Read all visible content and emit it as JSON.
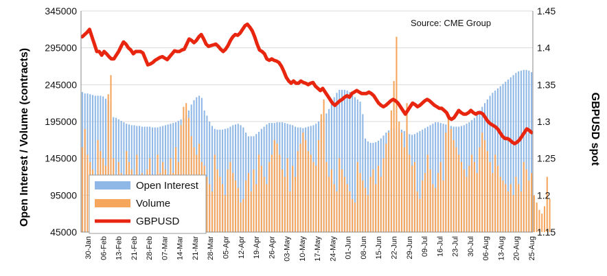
{
  "chart_data": {
    "type": "bar",
    "source_note": "Source: CME Group",
    "ylabel_left": "Open Interest / Volume (contracts)",
    "ylabel_right": "GBPUSD spot",
    "ylim_left": [
      45000,
      345000
    ],
    "ylim_right": [
      1.15,
      1.45
    ],
    "yticks_left": [
      "45000",
      "95000",
      "145000",
      "195000",
      "245000",
      "295000",
      "345000"
    ],
    "yticks_right": [
      "1.15",
      "1.2",
      "1.25",
      "1.3",
      "1.35",
      "1.4",
      "1.45"
    ],
    "xticks": [
      "30-Jan",
      "06-Feb",
      "13-Feb",
      "21-Feb",
      "28-Feb",
      "07-Mar",
      "14-Mar",
      "21-Mar",
      "28-Mar",
      "05-Apr",
      "12-Apr",
      "19-Apr",
      "26-Apr",
      "03-May",
      "10-May",
      "17-May",
      "24-May",
      "01-Jun",
      "08-Jun",
      "15-Jun",
      "22-Jun",
      "29-Jun",
      "09-Jul",
      "16-Jul",
      "23-Jul",
      "30-Jul",
      "06-Aug",
      "13-Aug",
      "20-Aug",
      "25-Aug"
    ],
    "legend": [
      {
        "label": "Open Interest",
        "color": "#8fb8e6"
      },
      {
        "label": "Volume",
        "color": "#f5a55c"
      },
      {
        "label": "GBPUSD",
        "color": "#e8260f"
      }
    ],
    "series": [
      {
        "name": "Open Interest",
        "type": "bar",
        "color": "#8fb8e6",
        "values": [
          235000,
          233000,
          233000,
          232000,
          231000,
          230000,
          230000,
          230000,
          229000,
          226000,
          223000,
          221000,
          201000,
          200000,
          198000,
          196000,
          194000,
          192000,
          191000,
          190000,
          190000,
          189000,
          189000,
          188000,
          188000,
          188000,
          188000,
          187000,
          187000,
          187000,
          188000,
          189000,
          190000,
          191000,
          192000,
          193000,
          194000,
          196000,
          198000,
          200000,
          204000,
          210000,
          218000,
          224000,
          228000,
          230000,
          227000,
          210000,
          203000,
          195000,
          189000,
          185000,
          184000,
          184000,
          184000,
          185000,
          186000,
          188000,
          190000,
          191000,
          192000,
          190000,
          187000,
          180000,
          175000,
          175000,
          175000,
          178000,
          181000,
          185000,
          188000,
          191000,
          193000,
          193000,
          193000,
          194000,
          194000,
          194000,
          193000,
          192000,
          191000,
          190000,
          188000,
          187000,
          187000,
          186000,
          187000,
          188000,
          189000,
          190000,
          192000,
          195000,
          198000,
          201000,
          206000,
          212000,
          220000,
          228000,
          234000,
          238000,
          238000,
          238000,
          237000,
          235000,
          232000,
          228000,
          225000,
          222000,
          205000,
          172000,
          168000,
          166000,
          166000,
          167000,
          169000,
          172000,
          176000,
          180000,
          183000,
          185000,
          186000,
          186000,
          185000,
          184000,
          182000,
          180000,
          178000,
          177000,
          178000,
          180000,
          182000,
          184000,
          186000,
          188000,
          190000,
          192000,
          194000,
          194000,
          193000,
          192000,
          191000,
          190000,
          189000,
          188000,
          188000,
          188000,
          189000,
          190000,
          192000,
          194000,
          197000,
          200000,
          205000,
          210000,
          215000,
          220000,
          225000,
          230000,
          234000,
          237000,
          240000,
          243000,
          246000,
          249000,
          252000,
          255000,
          258000,
          261000,
          263000,
          264000,
          265000,
          265000,
          264000,
          262000
        ]
      },
      {
        "name": "Volume",
        "type": "bar",
        "color": "#f5a55c",
        "values": [
          160000,
          185000,
          150000,
          140000,
          130000,
          120000,
          170000,
          155000,
          145000,
          135000,
          232000,
          258000,
          145000,
          110000,
          140000,
          125000,
          90000,
          155000,
          140000,
          130000,
          120000,
          150000,
          105000,
          125000,
          115000,
          130000,
          145000,
          110000,
          95000,
          150000,
          125000,
          140000,
          130000,
          115000,
          145000,
          125000,
          160000,
          140000,
          190000,
          215000,
          220000,
          200000,
          175000,
          160000,
          150000,
          165000,
          140000,
          135000,
          120000,
          110000,
          100000,
          150000,
          130000,
          120000,
          110000,
          95000,
          130000,
          140000,
          125000,
          115000,
          105000,
          85000,
          90000,
          115000,
          125000,
          100000,
          130000,
          110000,
          150000,
          135000,
          120000,
          110000,
          140000,
          150000,
          170000,
          165000,
          150000,
          130000,
          120000,
          145000,
          100000,
          135000,
          120000,
          155000,
          165000,
          180000,
          170000,
          155000,
          150000,
          140000,
          135000,
          170000,
          205000,
          225000,
          140000,
          120000,
          130000,
          110000,
          100000,
          145000,
          130000,
          120000,
          110000,
          100000,
          90000,
          85000,
          140000,
          125000,
          115000,
          105000,
          95000,
          120000,
          130000,
          110000,
          135000,
          120000,
          145000,
          165000,
          180000,
          210000,
          250000,
          310000,
          195000,
          180000,
          160000,
          220000,
          150000,
          135000,
          140000,
          100000,
          90000,
          115000,
          125000,
          150000,
          130000,
          110000,
          105000,
          125000,
          140000,
          115000,
          180000,
          200000,
          185000,
          170000,
          160000,
          150000,
          140000,
          130000,
          120000,
          135000,
          150000,
          140000,
          125000,
          160000,
          180000,
          170000,
          155000,
          140000,
          125000,
          150000,
          135000,
          120000,
          115000,
          110000,
          100000,
          110000,
          95000,
          120000,
          110000,
          100000,
          140000,
          130000,
          115000,
          125000,
          95000,
          85000,
          75000,
          70000,
          80000,
          120000,
          90000
        ]
      },
      {
        "name": "GBPUSD",
        "type": "line",
        "color": "#e8260f",
        "values": [
          1.415,
          1.418,
          1.421,
          1.425,
          1.415,
          1.405,
          1.395,
          1.395,
          1.39,
          1.395,
          1.392,
          1.388,
          1.385,
          1.385,
          1.39,
          1.395,
          1.402,
          1.408,
          1.405,
          1.4,
          1.397,
          1.392,
          1.395,
          1.395,
          1.395,
          1.393,
          1.385,
          1.377,
          1.378,
          1.38,
          1.383,
          1.385,
          1.387,
          1.388,
          1.386,
          1.384,
          1.388,
          1.392,
          1.396,
          1.395,
          1.395,
          1.397,
          1.398,
          1.405,
          1.412,
          1.41,
          1.407,
          1.41,
          1.415,
          1.418,
          1.412,
          1.405,
          1.402,
          1.403,
          1.404,
          1.405,
          1.402,
          1.398,
          1.395,
          1.398,
          1.403,
          1.41,
          1.415,
          1.418,
          1.417,
          1.42,
          1.425,
          1.43,
          1.432,
          1.428,
          1.423,
          1.415,
          1.405,
          1.397,
          1.395,
          1.392,
          1.385,
          1.383,
          1.385,
          1.383,
          1.382,
          1.38,
          1.375,
          1.368,
          1.36,
          1.355,
          1.352,
          1.355,
          1.352,
          1.352,
          1.355,
          1.353,
          1.352,
          1.35,
          1.352,
          1.353,
          1.348,
          1.345,
          1.342,
          1.345,
          1.34,
          1.335,
          1.33,
          1.325,
          1.322,
          1.325,
          1.328,
          1.33,
          1.333,
          1.335,
          1.333,
          1.338,
          1.34,
          1.342,
          1.34,
          1.338,
          1.338,
          1.338,
          1.34,
          1.338,
          1.335,
          1.33,
          1.325,
          1.322,
          1.32,
          1.322,
          1.325,
          1.328,
          1.33,
          1.328,
          1.325,
          1.32,
          1.315,
          1.31,
          1.315,
          1.32,
          1.325,
          1.323,
          1.32,
          1.322,
          1.325,
          1.328,
          1.33,
          1.328,
          1.325,
          1.322,
          1.32,
          1.318,
          1.318,
          1.315,
          1.312,
          1.305,
          1.303,
          1.305,
          1.31,
          1.315,
          1.312,
          1.31,
          1.31,
          1.312,
          1.315,
          1.312,
          1.31,
          1.312,
          1.312,
          1.31,
          1.305,
          1.3,
          1.297,
          1.295,
          1.293,
          1.29,
          1.285,
          1.28,
          1.277,
          1.277,
          1.275,
          1.272,
          1.27,
          1.272,
          1.275,
          1.28,
          1.285,
          1.29,
          1.288,
          1.285
        ]
      }
    ]
  }
}
